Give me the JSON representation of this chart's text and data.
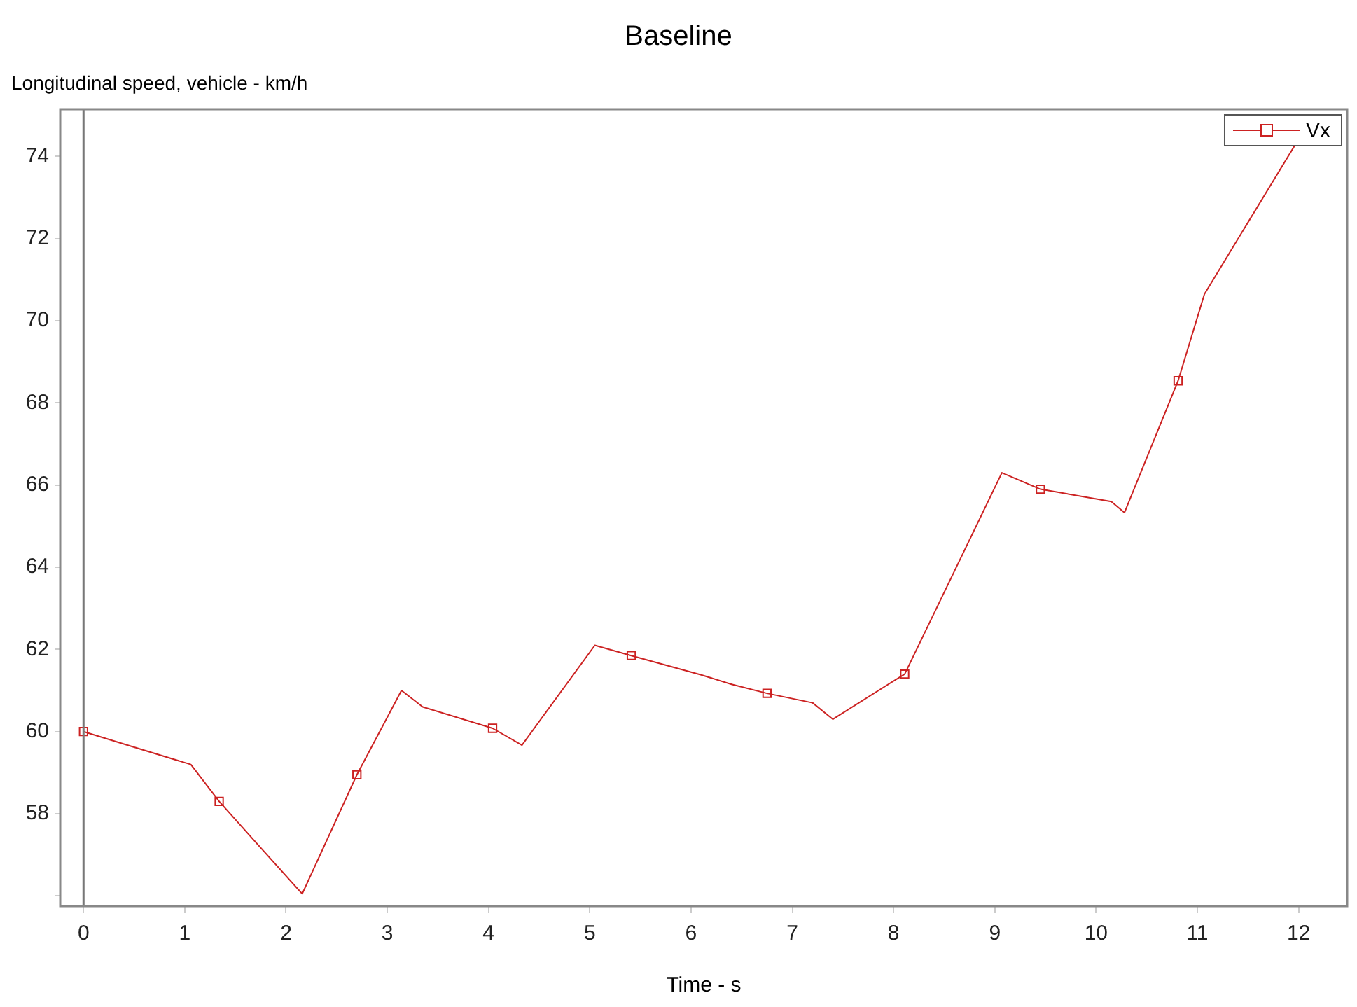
{
  "chart_data": {
    "type": "line",
    "title": "Baseline",
    "ylabel": "Longitudinal speed, vehicle - km/h",
    "xlabel": "Time - s",
    "x": [
      0,
      0.5,
      1.06,
      1.34,
      1.75,
      2.16,
      2.7,
      3.14,
      3.35,
      4.04,
      4.33,
      5.05,
      5.41,
      6.1,
      6.4,
      6.75,
      7.2,
      7.4,
      8.11,
      8.6,
      9.07,
      9.45,
      10.15,
      10.28,
      10.81,
      11.07,
      11.97
    ],
    "series": [
      {
        "name": "Vx",
        "color": "#cc2222",
        "marker": "none",
        "values": [
          60.0,
          59.62,
          59.2,
          58.3,
          57.17,
          56.05,
          58.95,
          61.0,
          60.6,
          60.08,
          59.67,
          62.1,
          61.85,
          61.38,
          61.15,
          60.93,
          60.7,
          60.3,
          61.4,
          63.9,
          66.3,
          65.9,
          65.6,
          65.33,
          68.54,
          70.65,
          74.3
        ]
      },
      {
        "type": "scatter",
        "color": "#cc2222",
        "x": [
          0,
          1.34,
          2.7,
          4.04,
          5.41,
          6.75,
          8.11,
          9.45,
          10.81
        ],
        "values": [
          60.0,
          58.3,
          58.95,
          60.08,
          61.85,
          60.93,
          61.4,
          65.9,
          68.54
        ]
      }
    ],
    "xlim": [
      -0.23,
      12.48
    ],
    "xticks": [
      0,
      1,
      2,
      3,
      4,
      5,
      6,
      7,
      8,
      9,
      10,
      11,
      12
    ],
    "ylim": [
      55.75,
      75.15
    ],
    "yticks": [
      {
        "value": 56,
        "label": null
      },
      58,
      60,
      62,
      64,
      66,
      68,
      70,
      72,
      74
    ],
    "ref_lines": [
      {
        "axis": "x",
        "value": 0,
        "color": "#777777"
      }
    ],
    "grid": false,
    "legend": "top right",
    "marker": "square",
    "line_style": "solid"
  }
}
